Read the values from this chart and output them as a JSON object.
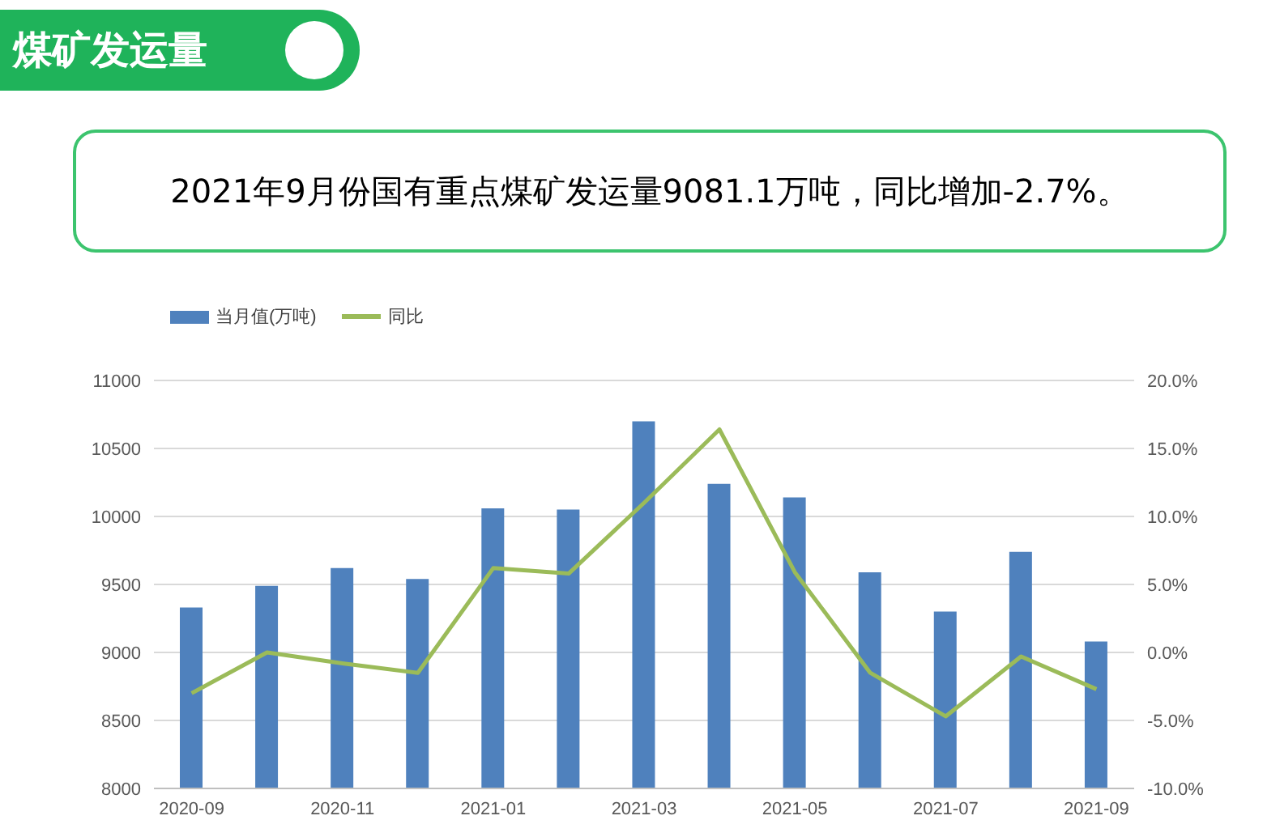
{
  "chart_data": {
    "type": "bar",
    "title": "煤矿发运量",
    "subtitle": "2021年9月份国有重点煤矿发运量9081.1万吨，同比增加-2.7%。",
    "categories": [
      "2020-09",
      null,
      "2020-11",
      null,
      "2021-01",
      null,
      "2021-03",
      null,
      "2021-05",
      null,
      "2021-07",
      null,
      "2021-09"
    ],
    "series": [
      {
        "name": "当月值(万吨)",
        "color": "#4f81bd",
        "values": [
          9330,
          9490,
          9620,
          9540,
          10060,
          10050,
          10700,
          10240,
          10140,
          9590,
          9300,
          9740,
          9081.1
        ]
      },
      {
        "name": "同比",
        "type": "line",
        "axis": "y2",
        "color": "#9bbb59",
        "values": [
          -3.0,
          0.0,
          -0.8,
          -1.5,
          6.2,
          5.8,
          11.0,
          16.4,
          5.9,
          -1.5,
          -4.7,
          -0.3,
          -2.7
        ]
      }
    ],
    "ylim": [
      8000,
      11000
    ],
    "yticks": [
      8000,
      8500,
      9000,
      9500,
      10000,
      10500,
      11000
    ],
    "y2lim": [
      -10,
      20
    ],
    "y2ticks": [
      {
        "value": -10,
        "label": "-10.0%"
      },
      {
        "value": -5,
        "label": "-5.0%"
      },
      {
        "value": 0,
        "label": "0.0%"
      },
      {
        "value": 5,
        "label": "5.0%"
      },
      {
        "value": 10,
        "label": "10.0%"
      },
      {
        "value": 15,
        "label": "15.0%"
      },
      {
        "value": 20,
        "label": "20.0%"
      }
    ],
    "grid": "y",
    "legend": "top left",
    "marker": "none",
    "line_style": "solid"
  }
}
